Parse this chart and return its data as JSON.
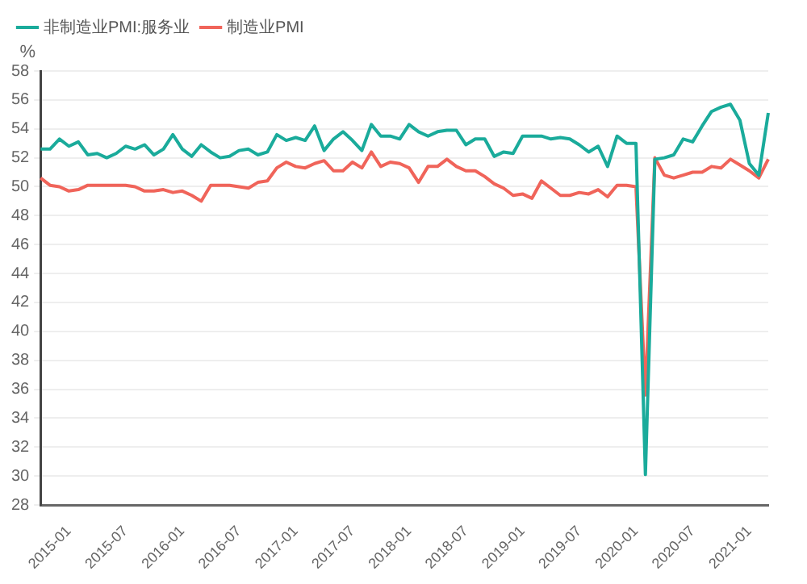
{
  "chart_data": {
    "type": "line",
    "ylabel": "%",
    "categories": [
      null,
      null,
      null,
      "2015-01",
      null,
      null,
      null,
      null,
      null,
      "2015-07",
      null,
      null,
      null,
      null,
      null,
      "2016-01",
      null,
      null,
      null,
      null,
      null,
      "2016-07",
      null,
      null,
      null,
      null,
      null,
      "2017-01",
      null,
      null,
      null,
      null,
      null,
      "2017-07",
      null,
      null,
      null,
      null,
      null,
      "2018-01",
      null,
      null,
      null,
      null,
      null,
      "2018-07",
      null,
      null,
      null,
      null,
      null,
      "2019-01",
      null,
      null,
      null,
      null,
      null,
      "2019-07",
      null,
      null,
      null,
      null,
      null,
      "2020-01",
      null,
      null,
      null,
      null,
      null,
      "2020-07",
      null,
      null,
      null,
      null,
      null,
      "2021-01",
      null,
      null
    ],
    "series": [
      {
        "name": "非制造业PMI:服务业",
        "color": "#1aab9b",
        "values": [
          52.6,
          52.6,
          53.3,
          52.8,
          53.1,
          52.2,
          52.3,
          52.0,
          52.3,
          52.8,
          52.6,
          52.9,
          52.2,
          52.6,
          53.6,
          52.6,
          52.1,
          52.9,
          52.4,
          52.0,
          52.1,
          52.5,
          52.6,
          52.2,
          52.4,
          53.6,
          53.2,
          53.4,
          53.2,
          54.2,
          52.5,
          53.3,
          53.8,
          53.2,
          52.5,
          54.3,
          53.5,
          53.5,
          53.3,
          54.3,
          53.8,
          53.5,
          53.8,
          53.9,
          53.9,
          52.9,
          53.3,
          53.3,
          52.1,
          52.4,
          52.3,
          53.5,
          53.5,
          53.5,
          53.3,
          53.4,
          53.3,
          52.9,
          52.4,
          52.8,
          51.4,
          53.5,
          53.0,
          53.0,
          30.1,
          51.9,
          52.0,
          52.2,
          53.3,
          53.1,
          54.2,
          55.2,
          55.5,
          55.7,
          54.6,
          51.6,
          50.8,
          55.1
        ]
      },
      {
        "name": "制造业PMI",
        "color": "#f0645a",
        "values": [
          50.6,
          50.1,
          50.0,
          49.7,
          49.8,
          50.1,
          50.1,
          50.1,
          50.1,
          50.1,
          50.0,
          49.7,
          49.7,
          49.8,
          49.6,
          49.7,
          49.4,
          49.0,
          50.1,
          50.1,
          50.1,
          50.0,
          49.9,
          50.3,
          50.4,
          51.3,
          51.7,
          51.4,
          51.3,
          51.6,
          51.8,
          51.1,
          51.1,
          51.7,
          51.3,
          52.4,
          51.4,
          51.7,
          51.6,
          51.3,
          50.3,
          51.4,
          51.4,
          51.9,
          51.4,
          51.1,
          51.1,
          50.7,
          50.2,
          49.9,
          49.4,
          49.5,
          49.2,
          50.4,
          49.9,
          49.4,
          49.4,
          49.6,
          49.5,
          49.8,
          49.3,
          50.1,
          50.1,
          50.0,
          35.6,
          52.0,
          50.8,
          50.6,
          50.8,
          51.0,
          51.0,
          51.4,
          51.3,
          51.9,
          51.5,
          51.1,
          50.6,
          51.9
        ]
      }
    ],
    "ylim": [
      28,
      58
    ],
    "yticks": [
      28,
      30,
      32,
      34,
      36,
      38,
      40,
      42,
      44,
      46,
      48,
      50,
      52,
      54,
      56,
      58
    ],
    "grid": "y",
    "legend": "top left",
    "marker": "none",
    "line_style": "solid"
  }
}
